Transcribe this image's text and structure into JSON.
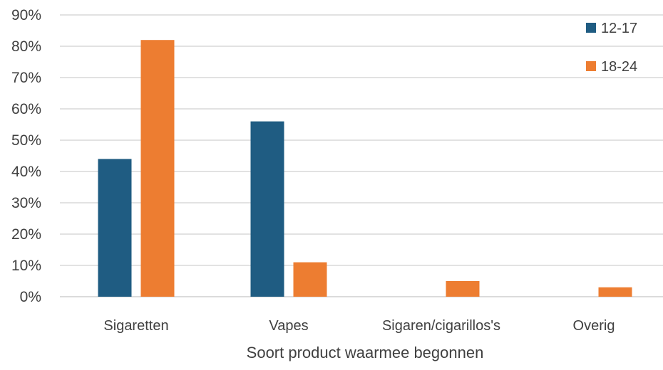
{
  "chart_data": {
    "type": "bar",
    "title": "",
    "xlabel": "Soort product waarmee begonnen",
    "ylabel": "",
    "categories": [
      "Sigaretten",
      "Vapes",
      "Sigaren/cigarillos's",
      "Overig"
    ],
    "series": [
      {
        "name": "12-17",
        "color": "#1f5c82",
        "values": [
          44,
          56,
          0,
          0
        ]
      },
      {
        "name": "18-24",
        "color": "#ed7d31",
        "values": [
          82,
          11,
          5,
          3
        ]
      }
    ],
    "ylim": [
      0,
      90
    ],
    "yticks": [
      0,
      10,
      20,
      30,
      40,
      50,
      60,
      70,
      80,
      90
    ],
    "ytick_labels": [
      "0%",
      "10%",
      "20%",
      "30%",
      "40%",
      "50%",
      "60%",
      "70%",
      "80%",
      "90%"
    ],
    "grid": true,
    "legend_position": "top-right"
  }
}
